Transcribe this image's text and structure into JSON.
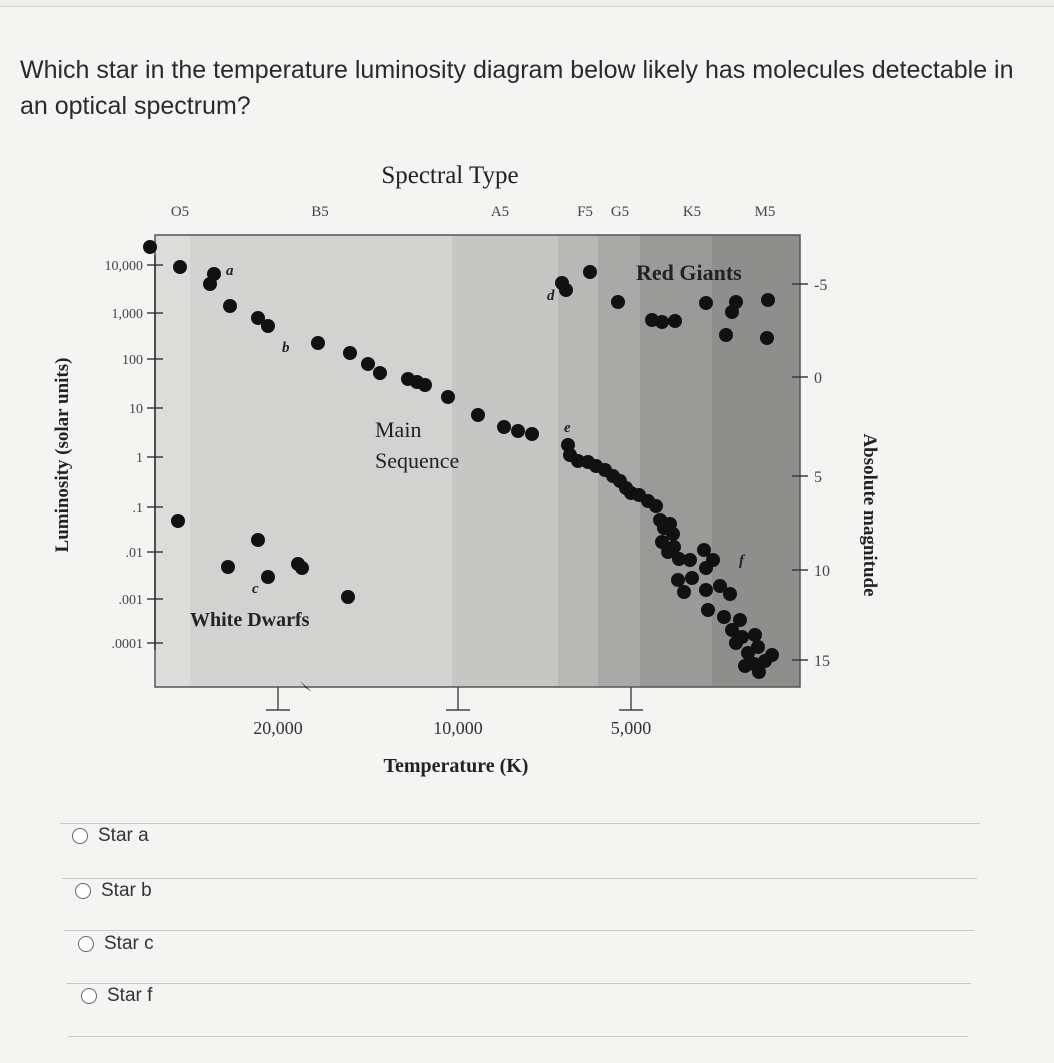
{
  "question": {
    "text": "Which star in the temperature luminosity diagram below likely has molecules detectable in an optical spectrum?"
  },
  "chart_data": {
    "type": "scatter",
    "title": "Spectral Type",
    "xlabel": "Temperature (K)",
    "ylabel": "Luminosity (solar units)",
    "y2label": "Absolute magnitude",
    "spectral_types": [
      "O5",
      "B5",
      "A5",
      "F5",
      "G5",
      "K5",
      "M5"
    ],
    "x_ticks": [
      "20,000",
      "10,000",
      "5,000"
    ],
    "y_ticks": [
      "10,000",
      "1,000",
      "100",
      "10",
      "1",
      ".1",
      ".01",
      ".001",
      ".0001"
    ],
    "y2_ticks": [
      "-5",
      "0",
      "5",
      "10",
      "15"
    ],
    "region_labels": {
      "main_sequence_line1": "Main",
      "main_sequence_line2": "Sequence",
      "red_giants": "Red Giants",
      "white_dwarfs": "White Dwarfs"
    },
    "star_labels": [
      "a",
      "b",
      "c",
      "d",
      "e",
      "f"
    ]
  },
  "options": [
    {
      "label": "Star a"
    },
    {
      "label": "Star b"
    },
    {
      "label": "Star c"
    },
    {
      "label": "Star f"
    }
  ]
}
